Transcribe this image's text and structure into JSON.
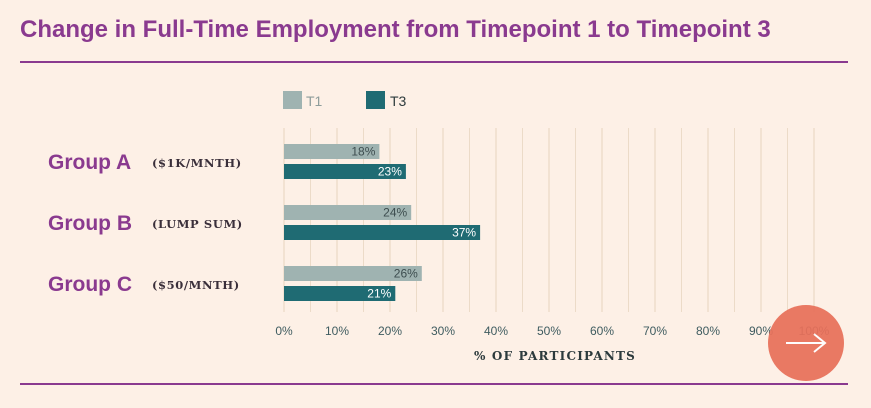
{
  "title": "Change in Full-Time Employment from Timepoint 1 to Timepoint 3",
  "colors": {
    "accent": "#8a3a8f",
    "t1": "#9fb3b1",
    "t3": "#1f6b73",
    "background": "#fdf0e6",
    "grid": "#ead9c4",
    "button": "#e8705a"
  },
  "next_button": {
    "icon": "arrow-right-icon"
  },
  "chart_data": {
    "type": "bar",
    "orientation": "horizontal",
    "categories": [
      "Group A",
      "Group B",
      "Group C"
    ],
    "category_notes": [
      "($1K/MNTH)",
      "(LUMP SUM)",
      "($50/MNTH)"
    ],
    "series": [
      {
        "name": "T1",
        "values": [
          18,
          24,
          26
        ],
        "labels": [
          "18%",
          "24%",
          "26%"
        ]
      },
      {
        "name": "T3",
        "values": [
          23,
          37,
          21
        ],
        "labels": [
          "23%",
          "37%",
          "21%"
        ]
      }
    ],
    "xlabel": "% OF PARTICIPANTS",
    "xlim": [
      0,
      100
    ],
    "xticks": [
      0,
      10,
      20,
      30,
      40,
      50,
      60,
      70,
      80,
      90,
      100
    ],
    "xtick_labels": [
      "0%",
      "10%",
      "20%",
      "30%",
      "40%",
      "50%",
      "60%",
      "70%",
      "80%",
      "90%",
      "100%"
    ],
    "grid": true,
    "legend_position": "top"
  }
}
